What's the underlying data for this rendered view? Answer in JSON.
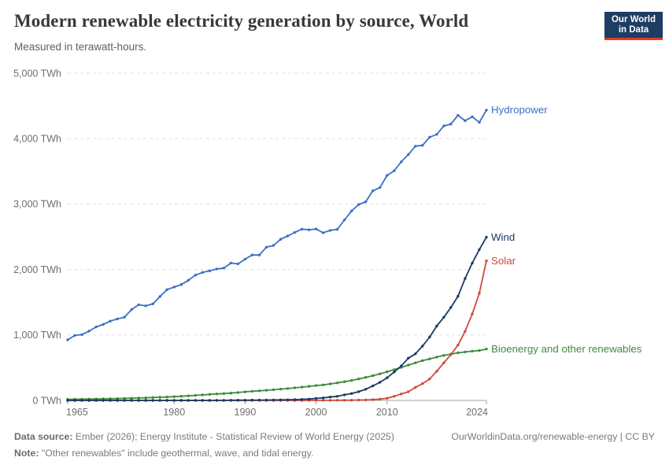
{
  "logo": {
    "line1": "Our World",
    "line2": "in Data",
    "bg_color": "#1d3d63",
    "stripe_color": "#e23a2b"
  },
  "footer": {
    "source_label": "Data source:",
    "source_text": " Ember (2026); Energy Institute - Statistical Review of World Energy (2025)",
    "note_label": "Note:",
    "note_text": " \"Other renewables\" include geothermal, wave, and tidal energy.",
    "link_text": "OurWorldinData.org/renewable-energy | CC BY"
  },
  "chart_data": {
    "type": "line",
    "title": "Modern renewable electricity generation by source, World",
    "subtitle": "Measured in terawatt-hours.",
    "unit": "TWh",
    "xlim": [
      1965,
      2024
    ],
    "ylim": [
      0,
      5000
    ],
    "grid": "horizontal-dashed",
    "legend_position": "end-of-line",
    "grid_color": "#e0e0e0",
    "axis_color": "#a1a1a1",
    "tick_label_color": "#6e6e6e",
    "x": [
      1965,
      1966,
      1967,
      1968,
      1969,
      1970,
      1971,
      1972,
      1973,
      1974,
      1975,
      1976,
      1977,
      1978,
      1979,
      1980,
      1981,
      1982,
      1983,
      1984,
      1985,
      1986,
      1987,
      1988,
      1989,
      1990,
      1991,
      1992,
      1993,
      1994,
      1995,
      1996,
      1997,
      1998,
      1999,
      2000,
      2001,
      2002,
      2003,
      2004,
      2005,
      2006,
      2007,
      2008,
      2009,
      2010,
      2011,
      2012,
      2013,
      2014,
      2015,
      2016,
      2017,
      2018,
      2019,
      2020,
      2021,
      2022,
      2023,
      2024
    ],
    "y_ticks": [
      {
        "value": 0,
        "label": "0 TWh"
      },
      {
        "value": 1000,
        "label": "1,000 TWh"
      },
      {
        "value": 2000,
        "label": "2,000 TWh"
      },
      {
        "value": 3000,
        "label": "3,000 TWh"
      },
      {
        "value": 4000,
        "label": "4,000 TWh"
      },
      {
        "value": 5000,
        "label": "5,000 TWh"
      }
    ],
    "x_ticks": [
      {
        "value": 1965,
        "label": "1965",
        "align": "start"
      },
      {
        "value": 1980,
        "label": "1980",
        "align": "middle"
      },
      {
        "value": 1990,
        "label": "1990",
        "align": "middle"
      },
      {
        "value": 2000,
        "label": "2000",
        "align": "middle"
      },
      {
        "value": 2010,
        "label": "2010",
        "align": "middle"
      },
      {
        "value": 2024,
        "label": "2024",
        "align": "end"
      }
    ],
    "series": [
      {
        "name": "Hydropower",
        "color": "#3b6fc5",
        "values": [
          926,
          993,
          1005,
          1059,
          1123,
          1161,
          1212,
          1245,
          1272,
          1388,
          1462,
          1445,
          1475,
          1586,
          1692,
          1732,
          1769,
          1835,
          1915,
          1955,
          1979,
          2008,
          2022,
          2098,
          2085,
          2159,
          2222,
          2221,
          2340,
          2368,
          2462,
          2512,
          2566,
          2616,
          2607,
          2619,
          2561,
          2597,
          2614,
          2759,
          2894,
          2993,
          3035,
          3203,
          3252,
          3437,
          3509,
          3646,
          3756,
          3885,
          3897,
          4022,
          4065,
          4193,
          4222,
          4356,
          4274,
          4334,
          4248,
          4435
        ]
      },
      {
        "name": "Wind",
        "color": "#1a3a63",
        "values": [
          0,
          0,
          0,
          0,
          0,
          0,
          0,
          0,
          0,
          0,
          0,
          0,
          0,
          0,
          0,
          0,
          0,
          0.1,
          0.2,
          0.4,
          0.6,
          1.1,
          1.7,
          2.3,
          3.2,
          3.9,
          4.6,
          5.1,
          5.8,
          7,
          8.3,
          9.4,
          12,
          16,
          21,
          31,
          38,
          52,
          63,
          85,
          104,
          133,
          171,
          221,
          276,
          346,
          434,
          526,
          646,
          712,
          831,
          967,
          1136,
          1270,
          1421,
          1591,
          1862,
          2098,
          2304,
          2494
        ]
      },
      {
        "name": "Solar",
        "color": "#d0493c",
        "values": [
          0,
          0,
          0,
          0,
          0,
          0,
          0,
          0,
          0,
          0,
          0,
          0,
          0,
          0,
          0,
          0,
          0,
          0,
          0,
          0,
          0,
          0,
          0,
          0,
          0,
          0.1,
          0.1,
          0.1,
          0.2,
          0.2,
          0.2,
          0.3,
          0.4,
          0.5,
          0.8,
          1.1,
          1.4,
          1.7,
          2.1,
          2.8,
          4,
          5.7,
          7.4,
          11.9,
          19.8,
          32,
          63,
          99,
          132,
          198,
          256,
          328,
          445,
          574,
          699,
          846,
          1055,
          1321,
          1637,
          2132
        ]
      },
      {
        "name": "Bioenergy and other renewables",
        "color": "#3e8c3c",
        "values": [
          17,
          18,
          19,
          20,
          22,
          24,
          26,
          28,
          31,
          34,
          37,
          40,
          44,
          48,
          53,
          58,
          64,
          70,
          77,
          84,
          92,
          98,
          105,
          112,
          121,
          131,
          139,
          147,
          155,
          164,
          173,
          182,
          192,
          203,
          215,
          227,
          237,
          252,
          268,
          286,
          305,
          328,
          352,
          378,
          406,
          437,
          470,
          505,
          540,
          575,
          608,
          635,
          662,
          688,
          708,
          727,
          740,
          752,
          762,
          785
        ]
      }
    ]
  }
}
